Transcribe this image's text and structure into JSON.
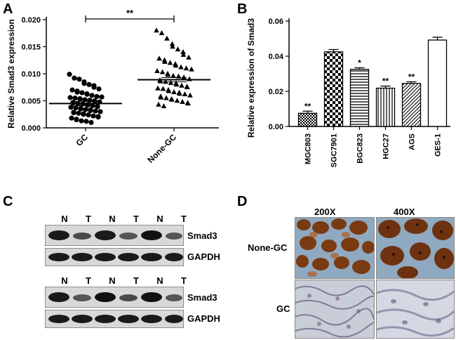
{
  "panels": {
    "a": "A",
    "b": "B",
    "c": "C",
    "d": "D"
  },
  "chart_data": [
    {
      "panel": "A",
      "type": "scatter",
      "ylabel": "Relative Smad3 expression",
      "ylim": [
        0.0,
        0.02
      ],
      "yticks": [
        "0.000",
        "0.005",
        "0.010",
        "0.015",
        "0.020"
      ],
      "categories": [
        "GC",
        "None-GC"
      ],
      "markers": [
        "circle",
        "triangle"
      ],
      "means": [
        0.0045,
        0.0089
      ],
      "significance": "**",
      "series": [
        {
          "values": [
            0.0099,
            0.0092,
            0.009,
            0.0085,
            0.0082,
            0.008,
            0.0078,
            0.0075,
            0.0072,
            0.007,
            0.0068,
            0.0066,
            0.0065,
            0.0063,
            0.0062,
            0.006,
            0.0058,
            0.0057,
            0.0056,
            0.0055,
            0.0054,
            0.0053,
            0.0052,
            0.0051,
            0.005,
            0.0049,
            0.0048,
            0.0047,
            0.0046,
            0.0045,
            0.0044,
            0.0043,
            0.0042,
            0.0041,
            0.004,
            0.0039,
            0.0038,
            0.0037,
            0.0036,
            0.0035,
            0.0034,
            0.0033,
            0.0032,
            0.0031,
            0.003,
            0.0029,
            0.0028,
            0.0027,
            0.0026,
            0.0025,
            0.0024,
            0.0022,
            0.0021,
            0.002,
            0.0018,
            0.0016,
            0.0015,
            0.0013,
            0.0012,
            0.001
          ]
        },
        {
          "values": [
            0.018,
            0.0175,
            0.0165,
            0.0155,
            0.015,
            0.0145,
            0.014,
            0.0135,
            0.013,
            0.0128,
            0.0125,
            0.0122,
            0.012,
            0.0118,
            0.0115,
            0.0112,
            0.011,
            0.0108,
            0.0105,
            0.0103,
            0.01,
            0.0098,
            0.0096,
            0.0095,
            0.0093,
            0.0092,
            0.009,
            0.0088,
            0.0086,
            0.0085,
            0.0083,
            0.0082,
            0.008,
            0.0078,
            0.0076,
            0.0075,
            0.0073,
            0.0072,
            0.007,
            0.0068,
            0.0066,
            0.0065,
            0.0063,
            0.0062,
            0.006,
            0.0058,
            0.0056,
            0.0055,
            0.0053,
            0.0052,
            0.005,
            0.0048,
            0.0046,
            0.0045,
            0.0043,
            0.004
          ]
        }
      ]
    },
    {
      "panel": "B",
      "type": "bar",
      "ylabel": "Relative expression of Smad3",
      "ylim": [
        0.0,
        0.06
      ],
      "yticks": [
        "0.00",
        "0.02",
        "0.04",
        "0.06"
      ],
      "categories": [
        "MGC803",
        "SGC7901",
        "BGC823",
        "HGC27",
        "AGS",
        "GES-1"
      ],
      "values": [
        0.0075,
        0.0425,
        0.0325,
        0.0218,
        0.0245,
        0.0492
      ],
      "errors": [
        0.0012,
        0.0013,
        0.0009,
        0.0012,
        0.0009,
        0.0016
      ],
      "significance": [
        "**",
        "",
        "*",
        "**",
        "**",
        ""
      ],
      "patterns": [
        "checker",
        "checker-large",
        "hlines",
        "vlines",
        "diag",
        "none"
      ]
    }
  ],
  "western_blot": {
    "lanes": [
      "N",
      "T",
      "N",
      "T",
      "N",
      "T"
    ],
    "blots": [
      {
        "protein": "Smad3"
      },
      {
        "protein": "GAPDH"
      },
      {
        "protein": "Smad3"
      },
      {
        "protein": "GAPDH"
      }
    ]
  },
  "ihc": {
    "columns": [
      "200X",
      "400X"
    ],
    "rows": [
      "None-GC",
      "GC"
    ]
  }
}
